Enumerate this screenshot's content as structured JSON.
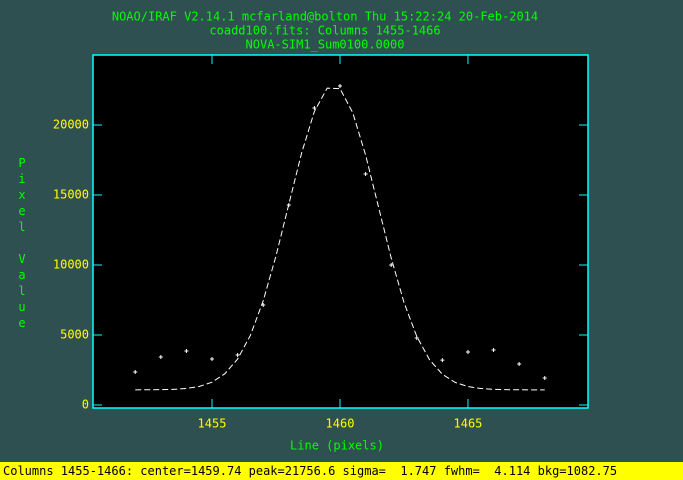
{
  "chart_data": {
    "type": "scatter",
    "title_lines": [
      "NOAO/IRAF V2.14.1 mcfarland@bolton Thu 15:22:24 20-Feb-2014",
      "coadd100.fits: Columns 1455-1466",
      "NOVA-SIM1_Sum0100.0000"
    ],
    "xlabel": "Line (pixels)",
    "ylabel": "Pixel Value",
    "xlim": [
      1450.35,
      1469.69
    ],
    "ylim": [
      -214,
      25000
    ],
    "xticks": [
      1455,
      1460,
      1465
    ],
    "yticks": [
      0,
      5000,
      10000,
      15000,
      20000
    ],
    "series": [
      {
        "marker": "+",
        "color": "#ffffff",
        "x": [
          1452,
          1453,
          1454,
          1455,
          1456,
          1457,
          1458,
          1459,
          1460,
          1461,
          1462,
          1463,
          1464,
          1465,
          1466,
          1467,
          1468
        ],
        "values": [
          2360,
          3430,
          3860,
          3290,
          3570,
          7140,
          14290,
          21210,
          22790,
          16500,
          10000,
          4790,
          3210,
          3790,
          3930,
          2930,
          1930
        ]
      },
      {
        "line": "dashed",
        "color": "#ffffff",
        "x": [
          1452,
          1452.5,
          1453,
          1453.5,
          1454,
          1454.5,
          1455,
          1455.5,
          1456,
          1456.5,
          1457,
          1457.5,
          1458,
          1458.5,
          1459,
          1459.5,
          1460,
          1460.5,
          1461,
          1461.5,
          1462,
          1462.5,
          1463,
          1463.5,
          1464,
          1464.5,
          1465,
          1465.5,
          1466,
          1466.5,
          1467,
          1467.5,
          1468
        ],
        "values": [
          1084,
          1087,
          1096,
          1120,
          1181,
          1324,
          1631,
          2228,
          3284,
          4977,
          7441,
          10647,
          14333,
          17993,
          20970,
          22635,
          22600,
          20876,
          17858,
          14181,
          10504,
          7327,
          4897,
          3230,
          2197,
          1614,
          1317,
          1178,
          1118,
          1095,
          1087,
          1084,
          1083
        ]
      }
    ]
  },
  "status_bar": "Columns 1455-1466: center=1459.74 peak=21756.6 sigma=  1.747 fwhm=  4.114 bkg=1082.75"
}
